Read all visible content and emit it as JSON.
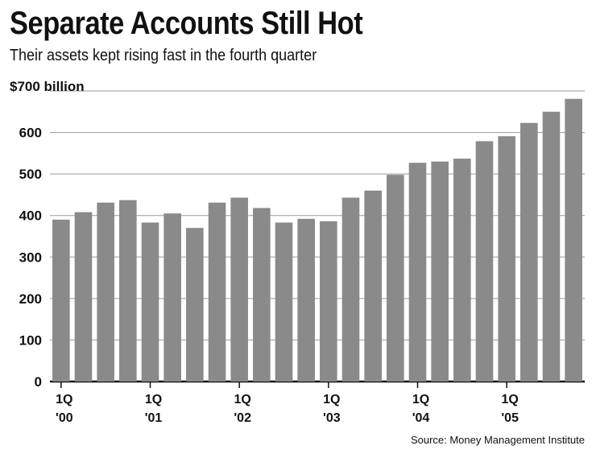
{
  "chart_data": {
    "type": "bar",
    "title": "Separate Accounts Still Hot",
    "subtitle": "Their assets kept rising fast in the fourth quarter",
    "source": "Source: Money Management Institute",
    "ylim": [
      0,
      700
    ],
    "yticks": [
      "0",
      "100",
      "200",
      "300",
      "400",
      "500",
      "600",
      "$700 billion"
    ],
    "ytick_values": [
      0,
      100,
      200,
      300,
      400,
      500,
      600,
      700
    ],
    "grid": true,
    "bar_color": "#8a8a8a",
    "categories": [
      "1Q '00",
      "2Q '00",
      "3Q '00",
      "4Q '00",
      "1Q '01",
      "2Q '01",
      "3Q '01",
      "4Q '01",
      "1Q '02",
      "2Q '02",
      "3Q '02",
      "4Q '02",
      "1Q '03",
      "2Q '03",
      "3Q '03",
      "4Q '03",
      "1Q '04",
      "2Q '04",
      "3Q '04",
      "4Q '04",
      "1Q '05",
      "2Q '05",
      "3Q '05",
      "4Q '05"
    ],
    "values": [
      390,
      408,
      431,
      437,
      383,
      405,
      370,
      431,
      443,
      418,
      383,
      392,
      386,
      443,
      460,
      498,
      527,
      530,
      537,
      579,
      591,
      623,
      650,
      681
    ],
    "x_tick_labels": [
      {
        "index": 0,
        "top": "1Q",
        "bottom": "'00"
      },
      {
        "index": 4,
        "top": "1Q",
        "bottom": "'01"
      },
      {
        "index": 8,
        "top": "1Q",
        "bottom": "'02"
      },
      {
        "index": 12,
        "top": "1Q",
        "bottom": "'03"
      },
      {
        "index": 16,
        "top": "1Q",
        "bottom": "'04"
      },
      {
        "index": 20,
        "top": "1Q",
        "bottom": "'05"
      }
    ]
  }
}
